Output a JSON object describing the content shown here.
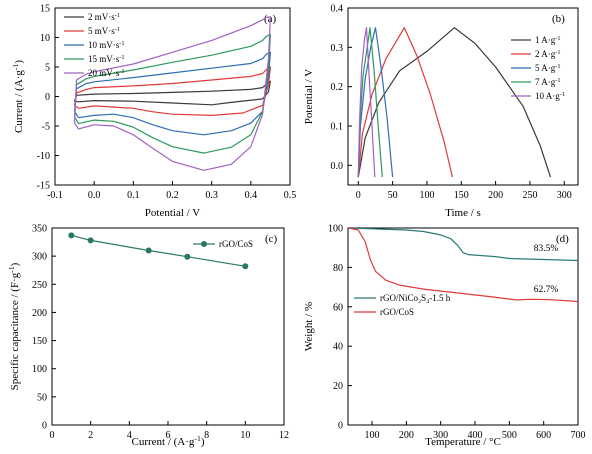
{
  "chart_data": [
    {
      "panel": "(a)",
      "type": "line",
      "xlabel": "Potential / V",
      "ylabel": "Current / (A·g⁻¹)",
      "xlim": [
        -0.1,
        0.5
      ],
      "ylim": [
        -15,
        15
      ],
      "xticks": [
        "-0.1",
        "0.0",
        "0.1",
        "0.2",
        "0.3",
        "0.4",
        "0.5"
      ],
      "yticks": [
        "-15",
        "-10",
        "-5",
        "0",
        "5",
        "10",
        "15"
      ],
      "legend_position": "top-left",
      "series": [
        {
          "name": "2 mV·s⁻¹",
          "color": "#3a3a3a",
          "anodic": [
            [
              -0.05,
              -0.8
            ],
            [
              -0.045,
              0.2
            ],
            [
              0.0,
              0.4
            ],
            [
              0.1,
              0.5
            ],
            [
              0.2,
              0.7
            ],
            [
              0.3,
              0.9
            ],
            [
              0.4,
              1.2
            ],
            [
              0.43,
              1.5
            ],
            [
              0.44,
              2.1
            ],
            [
              0.45,
              2.6
            ]
          ],
          "cathodic": [
            [
              0.45,
              2.6
            ],
            [
              0.445,
              0.8
            ],
            [
              0.43,
              -0.4
            ],
            [
              0.35,
              -1.0
            ],
            [
              0.3,
              -1.4
            ],
            [
              0.2,
              -1.1
            ],
            [
              0.1,
              -0.8
            ],
            [
              0.0,
              -0.7
            ],
            [
              -0.04,
              -0.9
            ],
            [
              -0.05,
              -0.8
            ]
          ]
        },
        {
          "name": "5 mV·s⁻¹",
          "color": "#e03a3a",
          "anodic": [
            [
              -0.05,
              -1.5
            ],
            [
              -0.045,
              0.6
            ],
            [
              -0.02,
              1.2
            ],
            [
              0.0,
              1.5
            ],
            [
              0.1,
              1.8
            ],
            [
              0.2,
              2.2
            ],
            [
              0.3,
              2.8
            ],
            [
              0.4,
              3.4
            ],
            [
              0.43,
              3.9
            ],
            [
              0.44,
              4.6
            ],
            [
              0.45,
              5.0
            ]
          ],
          "cathodic": [
            [
              0.45,
              5.0
            ],
            [
              0.445,
              2.0
            ],
            [
              0.43,
              -1.5
            ],
            [
              0.38,
              -2.8
            ],
            [
              0.3,
              -3.2
            ],
            [
              0.2,
              -3.0
            ],
            [
              0.15,
              -2.6
            ],
            [
              0.1,
              -2.0
            ],
            [
              0.0,
              -1.6
            ],
            [
              -0.04,
              -2.0
            ],
            [
              -0.05,
              -1.5
            ]
          ]
        },
        {
          "name": "10 mV·s⁻¹",
          "color": "#2f6db5",
          "anodic": [
            [
              -0.05,
              -2.5
            ],
            [
              -0.045,
              1.3
            ],
            [
              -0.02,
              2.2
            ],
            [
              0.0,
              2.5
            ],
            [
              0.1,
              3.2
            ],
            [
              0.2,
              4.0
            ],
            [
              0.3,
              4.8
            ],
            [
              0.4,
              5.6
            ],
            [
              0.43,
              6.4
            ],
            [
              0.44,
              7.2
            ],
            [
              0.45,
              7.5
            ]
          ],
          "cathodic": [
            [
              0.45,
              7.5
            ],
            [
              0.445,
              3.5
            ],
            [
              0.43,
              -2.5
            ],
            [
              0.4,
              -4.5
            ],
            [
              0.35,
              -5.8
            ],
            [
              0.28,
              -6.5
            ],
            [
              0.2,
              -5.8
            ],
            [
              0.15,
              -4.8
            ],
            [
              0.1,
              -3.6
            ],
            [
              0.05,
              -3.0
            ],
            [
              0.0,
              -3.2
            ],
            [
              -0.04,
              -3.6
            ],
            [
              -0.05,
              -2.5
            ]
          ]
        },
        {
          "name": "15 mV·s⁻¹",
          "color": "#2a9a5a",
          "anodic": [
            [
              -0.05,
              -3.5
            ],
            [
              -0.045,
              2.0
            ],
            [
              -0.02,
              3.0
            ],
            [
              0.0,
              3.4
            ],
            [
              0.1,
              4.5
            ],
            [
              0.2,
              5.8
            ],
            [
              0.3,
              7.0
            ],
            [
              0.4,
              8.5
            ],
            [
              0.43,
              9.5
            ],
            [
              0.44,
              10.2
            ],
            [
              0.45,
              10.5
            ]
          ],
          "cathodic": [
            [
              0.45,
              10.5
            ],
            [
              0.445,
              5.0
            ],
            [
              0.43,
              -2.5
            ],
            [
              0.4,
              -6.5
            ],
            [
              0.35,
              -8.6
            ],
            [
              0.28,
              -9.6
            ],
            [
              0.2,
              -8.5
            ],
            [
              0.15,
              -7.0
            ],
            [
              0.1,
              -5.2
            ],
            [
              0.05,
              -4.2
            ],
            [
              0.0,
              -4.0
            ],
            [
              -0.04,
              -4.6
            ],
            [
              -0.05,
              -3.5
            ]
          ]
        },
        {
          "name": "20 mV·s⁻¹",
          "color": "#a060c0",
          "anodic": [
            [
              -0.05,
              -4.5
            ],
            [
              -0.045,
              2.8
            ],
            [
              -0.02,
              3.8
            ],
            [
              0.0,
              4.2
            ],
            [
              0.1,
              5.5
            ],
            [
              0.2,
              7.5
            ],
            [
              0.3,
              9.5
            ],
            [
              0.4,
              12.0
            ],
            [
              0.43,
              13.0
            ],
            [
              0.44,
              13.4
            ],
            [
              0.45,
              13.5
            ]
          ],
          "cathodic": [
            [
              0.45,
              13.5
            ],
            [
              0.445,
              6.5
            ],
            [
              0.43,
              -3.0
            ],
            [
              0.4,
              -8.5
            ],
            [
              0.35,
              -11.5
            ],
            [
              0.28,
              -12.5
            ],
            [
              0.2,
              -11.0
            ],
            [
              0.15,
              -8.8
            ],
            [
              0.1,
              -6.5
            ],
            [
              0.05,
              -5.0
            ],
            [
              0.0,
              -4.8
            ],
            [
              -0.04,
              -5.5
            ],
            [
              -0.05,
              -4.5
            ]
          ]
        }
      ]
    },
    {
      "panel": "(b)",
      "type": "line",
      "xlabel": "Time / s",
      "ylabel": "Potential / V",
      "xlim": [
        -15,
        320
      ],
      "ylim": [
        -0.05,
        0.4
      ],
      "xticks": [
        "0",
        "50",
        "100",
        "150",
        "200",
        "250",
        "300"
      ],
      "yticks": [
        "0.0",
        "0.1",
        "0.2",
        "0.3",
        "0.4"
      ],
      "legend_position": "top-right",
      "series": [
        {
          "name": "1 A·g⁻¹",
          "color": "#3a3a3a",
          "points": [
            [
              0,
              -0.03
            ],
            [
              10,
              0.07
            ],
            [
              30,
              0.16
            ],
            [
              60,
              0.24
            ],
            [
              100,
              0.29
            ],
            [
              140,
              0.35
            ],
            [
              170,
              0.31
            ],
            [
              200,
              0.25
            ],
            [
              240,
              0.15
            ],
            [
              265,
              0.05
            ],
            [
              280,
              -0.03
            ]
          ]
        },
        {
          "name": "2 A·g⁻¹",
          "color": "#e03a3a",
          "points": [
            [
              0,
              -0.03
            ],
            [
              6,
              0.08
            ],
            [
              20,
              0.18
            ],
            [
              40,
              0.27
            ],
            [
              67,
              0.35
            ],
            [
              85,
              0.28
            ],
            [
              105,
              0.18
            ],
            [
              125,
              0.06
            ],
            [
              137,
              -0.03
            ]
          ]
        },
        {
          "name": "5 A·g⁻¹",
          "color": "#2f6db5",
          "points": [
            [
              0,
              -0.03
            ],
            [
              3,
              0.1
            ],
            [
              10,
              0.22
            ],
            [
              18,
              0.3
            ],
            [
              25,
              0.35
            ],
            [
              33,
              0.25
            ],
            [
              42,
              0.12
            ],
            [
              50,
              -0.03
            ]
          ]
        },
        {
          "name": "7 A·g⁻¹",
          "color": "#2a9a5a",
          "points": [
            [
              0,
              -0.03
            ],
            [
              2,
              0.1
            ],
            [
              7,
              0.23
            ],
            [
              13,
              0.3
            ],
            [
              17,
              0.35
            ],
            [
              23,
              0.24
            ],
            [
              29,
              0.1
            ],
            [
              35,
              -0.03
            ]
          ]
        },
        {
          "name": "10 A·g⁻¹",
          "color": "#a060c0",
          "points": [
            [
              0,
              -0.03
            ],
            [
              2,
              0.12
            ],
            [
              5,
              0.25
            ],
            [
              9,
              0.32
            ],
            [
              12,
              0.35
            ],
            [
              16,
              0.22
            ],
            [
              20,
              0.1
            ],
            [
              24,
              -0.03
            ]
          ]
        }
      ]
    },
    {
      "panel": "(c)",
      "type": "line",
      "xlabel": "Current / (A·g⁻¹)",
      "ylabel": "Specific capacitance / (F·g⁻¹)",
      "xlim": [
        0,
        12
      ],
      "ylim": [
        0,
        350
      ],
      "xticks": [
        "0",
        "2",
        "4",
        "6",
        "8",
        "10",
        "12"
      ],
      "yticks": [
        "0",
        "50",
        "100",
        "150",
        "200",
        "250",
        "300",
        "350"
      ],
      "legend_position": "top-right",
      "series": [
        {
          "name": "rGO/CoS",
          "color": "#2a7a5a",
          "x": [
            1,
            2,
            5,
            7,
            10
          ],
          "values": [
            337,
            328,
            310,
            299,
            282
          ]
        }
      ]
    },
    {
      "panel": "(d)",
      "type": "line",
      "xlabel": "Temperature / °C",
      "ylabel": "Weight / %",
      "xlim": [
        30,
        700
      ],
      "ylim": [
        0,
        100
      ],
      "xticks": [
        "100",
        "200",
        "300",
        "400",
        "500",
        "600",
        "700"
      ],
      "yticks": [
        "0",
        "20",
        "40",
        "60",
        "80",
        "100"
      ],
      "legend_position": "center-left",
      "annotations": [
        "83.5%",
        "62.7%"
      ],
      "series": [
        {
          "name": "rGO/NiCo₂S₄-1.5 h",
          "color": "#2a7a7a",
          "points": [
            [
              30,
              100
            ],
            [
              100,
              99.6
            ],
            [
              200,
              99
            ],
            [
              250,
              98.2
            ],
            [
              300,
              96.5
            ],
            [
              330,
              94.5
            ],
            [
              350,
              91
            ],
            [
              365,
              87.5
            ],
            [
              380,
              86.5
            ],
            [
              420,
              86
            ],
            [
              460,
              85.5
            ],
            [
              500,
              84.5
            ],
            [
              600,
              84
            ],
            [
              700,
              83.5
            ]
          ]
        },
        {
          "name": "rGO/CoS",
          "color": "#e03a3a",
          "points": [
            [
              30,
              100
            ],
            [
              60,
              99
            ],
            [
              80,
              93
            ],
            [
              95,
              84
            ],
            [
              110,
              78
            ],
            [
              140,
              73.5
            ],
            [
              180,
              71
            ],
            [
              250,
              69
            ],
            [
              350,
              67
            ],
            [
              450,
              65
            ],
            [
              520,
              63.5
            ],
            [
              560,
              63.8
            ],
            [
              620,
              63.6
            ],
            [
              700,
              62.7
            ]
          ]
        }
      ]
    }
  ]
}
